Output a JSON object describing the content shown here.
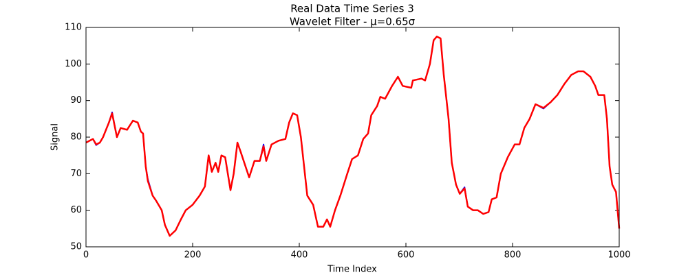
{
  "chart_data": {
    "type": "line",
    "title": "Real Data Time Series 3",
    "subtitle": "Wavelet Filter - μ=0.65σ",
    "x_label": "Time Index",
    "y_label": "Signal",
    "x": [
      0,
      13,
      19,
      26,
      32,
      43,
      49,
      58,
      65,
      77,
      88,
      97,
      103,
      107,
      112,
      116,
      125,
      132,
      142,
      148,
      157,
      168,
      178,
      187,
      200,
      213,
      223,
      230,
      236,
      243,
      248,
      254,
      261,
      271,
      277,
      284,
      290,
      306,
      316,
      326,
      333,
      338,
      348,
      361,
      374,
      381,
      388,
      396,
      403,
      409,
      415,
      426,
      435,
      445,
      452,
      458,
      467,
      477,
      490,
      499,
      510,
      520,
      529,
      535,
      546,
      552,
      561,
      574,
      585,
      594,
      610,
      613,
      629,
      636,
      645,
      652,
      658,
      665,
      671,
      680,
      686,
      694,
      701,
      710,
      716,
      726,
      735,
      745,
      755,
      761,
      770,
      778,
      791,
      804,
      813,
      822,
      832,
      843,
      858,
      871,
      884,
      897,
      910,
      923,
      933,
      946,
      955,
      961,
      972,
      977,
      982,
      987,
      994,
      997,
      1000
    ],
    "series": [
      {
        "color": "#0000ff",
        "values": [
          78.5,
          79.5,
          77.8,
          78.5,
          80,
          84,
          86.8,
          80,
          82.5,
          82,
          84.5,
          84,
          81.5,
          81,
          72,
          68.5,
          64,
          62.5,
          60,
          56,
          53,
          54.5,
          57.5,
          60,
          61.5,
          64,
          66.5,
          75,
          70.5,
          73,
          70.5,
          75,
          74.5,
          65.5,
          70,
          78.5,
          76,
          69,
          73.5,
          73.5,
          78,
          73.5,
          78,
          79,
          79.5,
          84,
          86.5,
          86,
          80,
          72,
          64,
          61.5,
          55.5,
          55.5,
          57.5,
          55.5,
          60,
          64,
          70,
          74,
          75,
          79.5,
          81,
          86,
          88.5,
          91,
          90.5,
          94,
          96.5,
          94,
          93.5,
          95.5,
          96,
          95.5,
          100,
          106.5,
          107.5,
          107,
          97,
          85,
          73,
          67,
          64.5,
          66.3,
          61,
          60,
          60,
          59,
          59.5,
          63,
          63.5,
          70,
          74.5,
          78,
          78,
          82.5,
          85,
          89,
          87.8,
          89.5,
          91.5,
          94.5,
          97,
          98,
          98,
          96.5,
          94,
          91.5,
          91.5,
          85,
          72,
          67,
          65,
          60,
          55
        ]
      },
      {
        "color": "#ff0000",
        "values": [
          78.5,
          79.5,
          78,
          78.5,
          80,
          84,
          86.5,
          80,
          82.5,
          82,
          84.5,
          84,
          81.5,
          81,
          72,
          68,
          64,
          62.5,
          60,
          56,
          53,
          54.5,
          57.5,
          60,
          61.5,
          64,
          66.5,
          75,
          70.5,
          73,
          70.5,
          75,
          74.5,
          65.5,
          70,
          78.5,
          76,
          69,
          73.5,
          73.5,
          77.5,
          73.5,
          78,
          79,
          79.5,
          84,
          86.5,
          86,
          80,
          72,
          64,
          61.5,
          55.5,
          55.5,
          57.5,
          55.5,
          60,
          64,
          70,
          74,
          75,
          79.5,
          81,
          86,
          88.5,
          91,
          90.5,
          94,
          96.5,
          94,
          93.5,
          95.5,
          96,
          95.5,
          100,
          106.5,
          107.5,
          107,
          97,
          85,
          73,
          67,
          64.5,
          66,
          61,
          60,
          60,
          59,
          59.5,
          63,
          63.5,
          70,
          74.5,
          78,
          78,
          82.5,
          85,
          89,
          88,
          89.5,
          91.5,
          94.5,
          97,
          98,
          98,
          96.5,
          94,
          91.5,
          91.5,
          85,
          72,
          67,
          65,
          60,
          55
        ]
      }
    ],
    "xlim": [
      0,
      1000
    ],
    "xticks": [
      0,
      200,
      400,
      600,
      800,
      1000
    ],
    "ylim": [
      50,
      110
    ],
    "yticks": [
      50,
      60,
      70,
      80,
      90,
      100,
      110
    ],
    "grid": false
  }
}
